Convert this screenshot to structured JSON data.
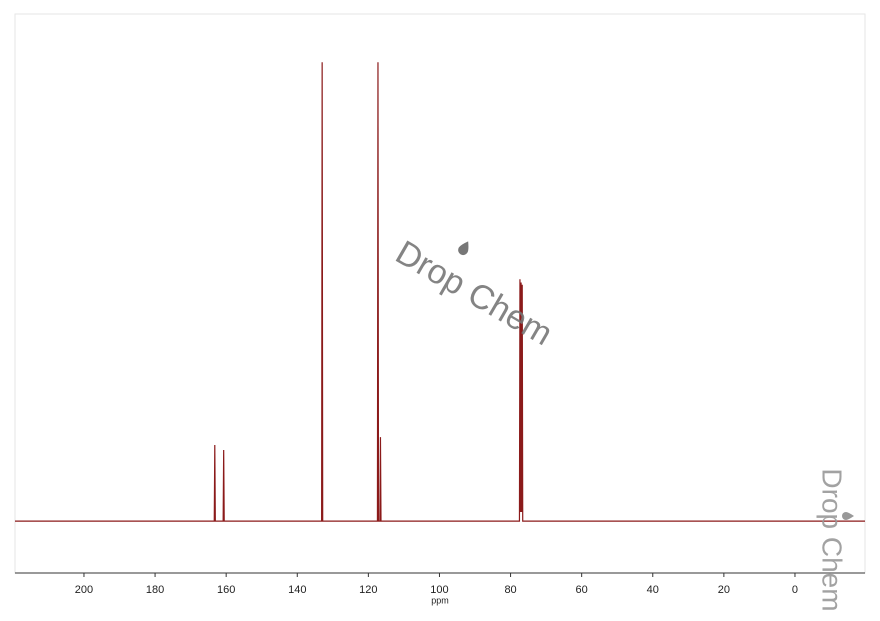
{
  "chart_data": {
    "type": "line",
    "x_label": "ppm",
    "watermarks": [
      "Drop Chem",
      "Drop Chem"
    ],
    "x": [
      219.4,
      163.35,
      163.2,
      163.05,
      160.85,
      160.7,
      160.55,
      133.15,
      133.0,
      132.85,
      117.45,
      117.3,
      117.15,
      116.75,
      116.6,
      116.45,
      77.5,
      77.36,
      77.2,
      77.04,
      76.88,
      76.72,
      76.58,
      -19.7
    ],
    "values": [
      0,
      0,
      16.6,
      0,
      0,
      15.5,
      0,
      0,
      100,
      0,
      0,
      100,
      0,
      0,
      18.3,
      0,
      0,
      52.7,
      2,
      52,
      2,
      51.5,
      0,
      0
    ],
    "color": "#8b1a1a",
    "xlim": [
      219.4,
      -19.7
    ],
    "ylim": [
      -11.3,
      110.5
    ],
    "xticks": [
      200,
      180,
      160,
      140,
      120,
      100,
      80,
      60,
      40,
      20,
      0
    ]
  }
}
